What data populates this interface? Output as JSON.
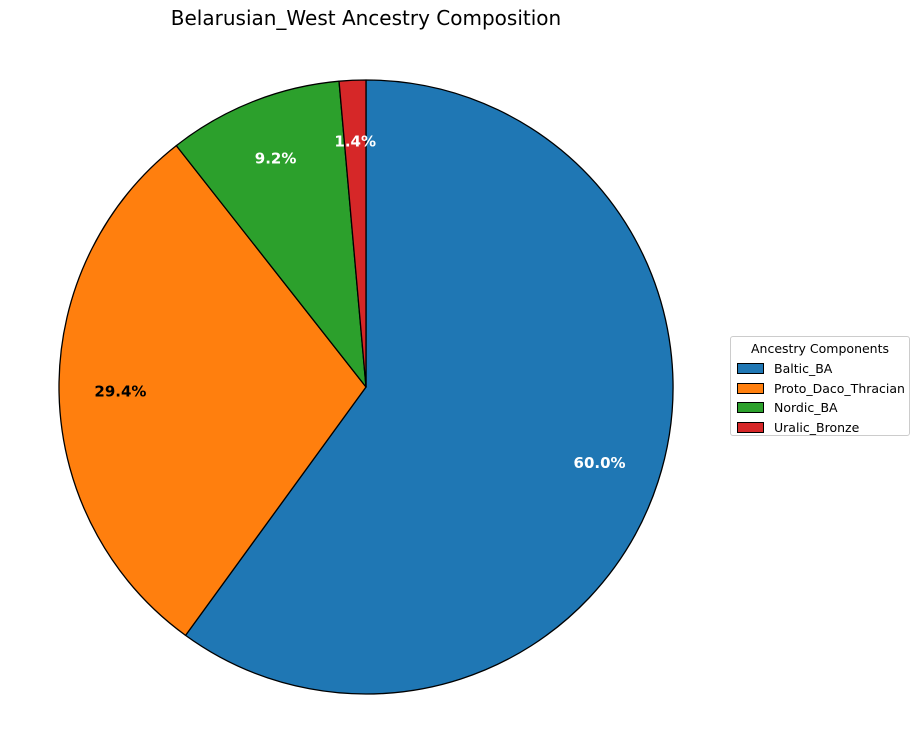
{
  "chart_data": {
    "type": "pie",
    "title": "Belarusian_West Ancestry Composition",
    "start_angle_deg": 90,
    "direction": "clockwise",
    "slices": [
      {
        "label": "Baltic_BA",
        "value": 60.0,
        "pct_label": "60.0%",
        "color": "#1f77b4",
        "label_color": "#ffffff"
      },
      {
        "label": "Proto_Daco_Thracian",
        "value": 29.4,
        "pct_label": "29.4%",
        "color": "#ff7f0e",
        "label_color": "#000000"
      },
      {
        "label": "Nordic_BA",
        "value": 9.2,
        "pct_label": "9.2%",
        "color": "#2ca02c",
        "label_color": "#ffffff"
      },
      {
        "label": "Uralic_Bronze",
        "value": 1.4,
        "pct_label": "1.4%",
        "color": "#d62728",
        "label_color": "#ffffff"
      }
    ],
    "legend": {
      "title": "Ancestry Components",
      "placement": "right"
    },
    "edge_color": "#000000"
  }
}
